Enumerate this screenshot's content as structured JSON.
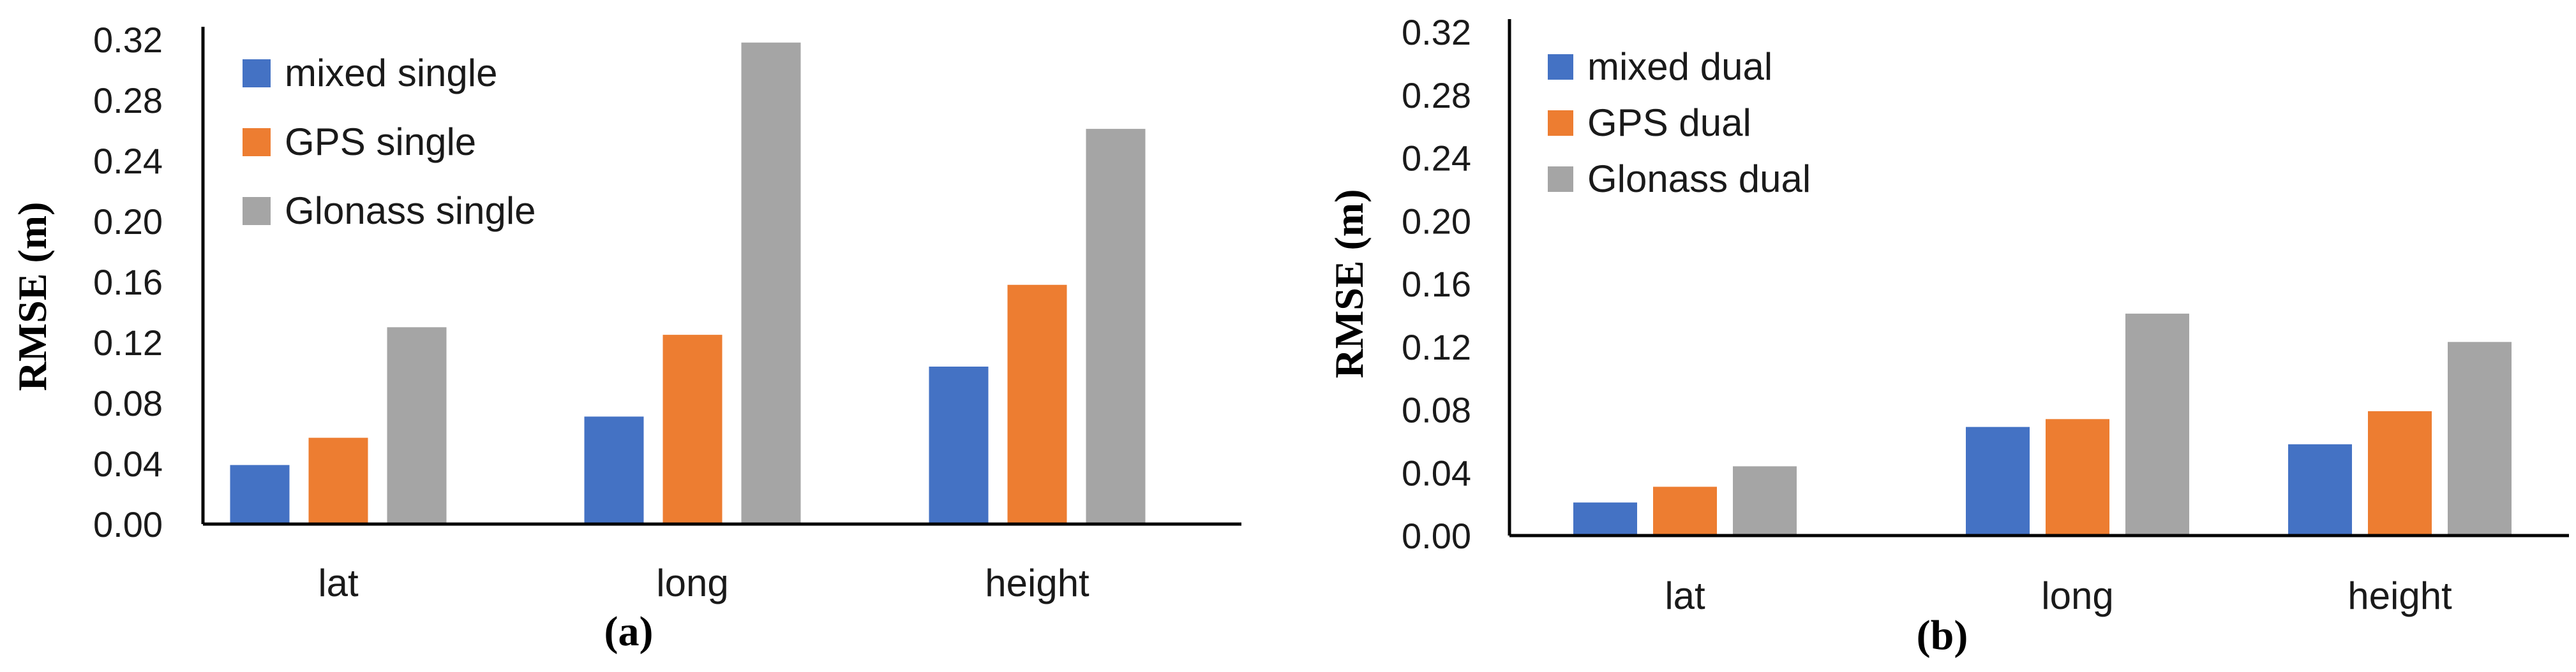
{
  "chart_data": [
    {
      "type": "bar",
      "caption": "(a)",
      "ylabel": "RMSE (m)",
      "xlabel": "",
      "ylim": [
        0,
        0.32
      ],
      "yticks": [
        "0.00",
        "0.04",
        "0.08",
        "0.12",
        "0.16",
        "0.20",
        "0.24",
        "0.28",
        "0.32"
      ],
      "categories": [
        "lat",
        "long",
        "height"
      ],
      "legend_position": "top-left",
      "grid": false,
      "series": [
        {
          "name": "mixed single",
          "color": "#4472C4",
          "values": [
            0.039,
            0.071,
            0.104
          ]
        },
        {
          "name": "GPS single",
          "color": "#ED7D31",
          "values": [
            0.057,
            0.125,
            0.158
          ]
        },
        {
          "name": "Glonass single",
          "color": "#A5A5A5",
          "values": [
            0.13,
            0.318,
            0.261
          ]
        }
      ]
    },
    {
      "type": "bar",
      "caption": "(b)",
      "ylabel": "RMSE (m)",
      "xlabel": "",
      "ylim": [
        0,
        0.32
      ],
      "yticks": [
        "0.00",
        "0.04",
        "0.08",
        "0.12",
        "0.16",
        "0.20",
        "0.24",
        "0.28",
        "0.32"
      ],
      "categories": [
        "lat",
        "long",
        "height"
      ],
      "legend_position": "top-left",
      "grid": false,
      "series": [
        {
          "name": "mixed dual",
          "color": "#4472C4",
          "values": [
            0.021,
            0.069,
            0.058
          ]
        },
        {
          "name": "GPS dual",
          "color": "#ED7D31",
          "values": [
            0.031,
            0.074,
            0.079
          ]
        },
        {
          "name": "Glonass dual",
          "color": "#A5A5A5",
          "values": [
            0.044,
            0.141,
            0.123
          ]
        }
      ]
    }
  ]
}
